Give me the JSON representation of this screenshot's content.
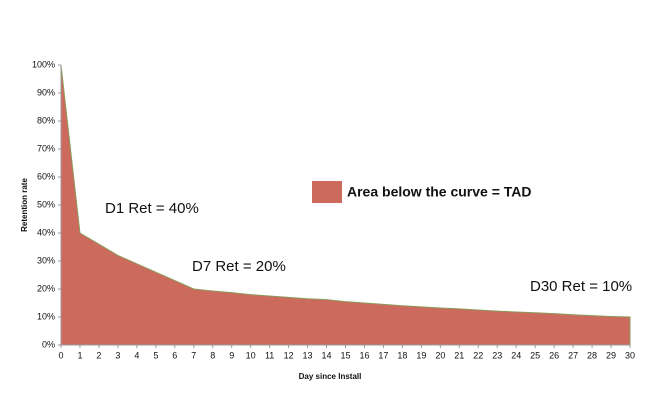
{
  "chart_data": {
    "type": "area",
    "y_label": "Retention rate",
    "x_label": "Day since Install",
    "x": [
      0,
      1,
      2,
      3,
      4,
      5,
      6,
      7,
      8,
      9,
      10,
      11,
      12,
      13,
      14,
      15,
      16,
      17,
      18,
      19,
      20,
      21,
      22,
      23,
      24,
      25,
      26,
      27,
      28,
      29,
      30
    ],
    "series": [
      {
        "name": "Area below the curve = TAD",
        "color": "#cd6a5e",
        "line_color": "#8c9a5a",
        "values": [
          100,
          40,
          36,
          32,
          29,
          26,
          23,
          20,
          19.3,
          18.7,
          18,
          17.5,
          17,
          16.5,
          16.2,
          15.5,
          15,
          14.5,
          14,
          13.6,
          13.2,
          12.9,
          12.5,
          12.1,
          11.8,
          11.5,
          11.2,
          10.8,
          10.5,
          10.2,
          10
        ]
      }
    ],
    "xlim": [
      0,
      30
    ],
    "xticks": [
      0,
      1,
      2,
      3,
      4,
      5,
      6,
      7,
      8,
      9,
      10,
      11,
      12,
      13,
      14,
      15,
      16,
      17,
      18,
      19,
      20,
      21,
      22,
      23,
      24,
      25,
      26,
      27,
      28,
      29,
      30
    ],
    "ylim": [
      0,
      100
    ],
    "yticks": [
      {
        "value": 0,
        "label": "0%"
      },
      {
        "value": 10,
        "label": "10%"
      },
      {
        "value": 20,
        "label": "20%"
      },
      {
        "value": 30,
        "label": "30%"
      },
      {
        "value": 40,
        "label": "40%"
      },
      {
        "value": 50,
        "label": "50%"
      },
      {
        "value": 60,
        "label": "60%"
      },
      {
        "value": 70,
        "label": "70%"
      },
      {
        "value": 80,
        "label": "80%"
      },
      {
        "value": 90,
        "label": "90%"
      },
      {
        "value": 100,
        "label": "100%"
      }
    ],
    "annotations": [
      "D1 Ret = 40%",
      "D7 Ret = 20%",
      "D30 Ret = 10%"
    ],
    "grid": false
  }
}
